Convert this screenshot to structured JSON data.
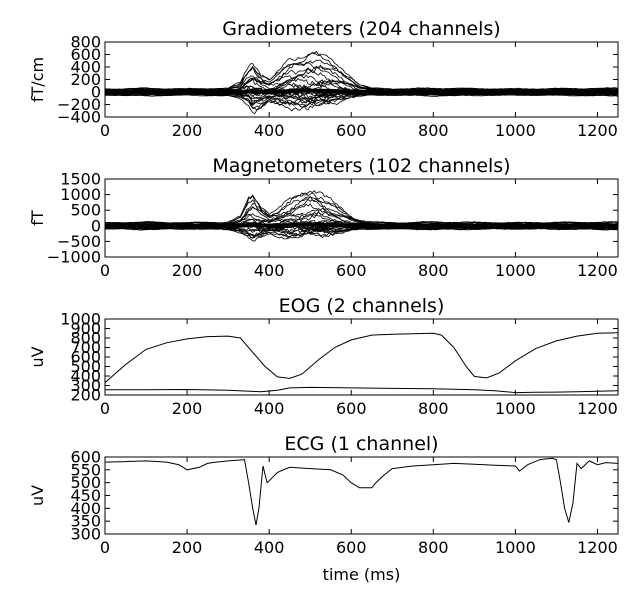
{
  "chart_data": [
    {
      "type": "line",
      "title": "Gradiometers (204 channels)",
      "ylabel": "fT/cm",
      "xlabel": "",
      "xlim": [
        0,
        1250
      ],
      "ylim": [
        -400,
        800
      ],
      "xticks": [
        0,
        200,
        400,
        600,
        800,
        1000,
        1200
      ],
      "yticks": [
        -400,
        -200,
        0,
        200,
        400,
        600,
        800
      ],
      "grid": false,
      "line_color": "#000000",
      "envelope": {
        "x": [
          0,
          100,
          200,
          300,
          330,
          350,
          360,
          380,
          400,
          420,
          450,
          480,
          500,
          520,
          550,
          580,
          600,
          620,
          650,
          700,
          800,
          1000,
          1250
        ],
        "upper": [
          50,
          60,
          50,
          60,
          150,
          420,
          500,
          300,
          200,
          300,
          500,
          600,
          660,
          620,
          500,
          350,
          250,
          120,
          60,
          50,
          60,
          50,
          60
        ],
        "lower": [
          -50,
          -60,
          -50,
          -60,
          -100,
          -200,
          -300,
          -250,
          -150,
          -200,
          -250,
          -230,
          -220,
          -200,
          -180,
          -120,
          -80,
          -60,
          -50,
          -50,
          -60,
          -50,
          -60
        ]
      }
    },
    {
      "type": "line",
      "title": "Magnetometers (102 channels)",
      "ylabel": "fT",
      "xlabel": "",
      "xlim": [
        0,
        1250
      ],
      "ylim": [
        -1000,
        1500
      ],
      "xticks": [
        0,
        200,
        400,
        600,
        800,
        1000,
        1200
      ],
      "yticks": [
        -1000,
        -500,
        0,
        500,
        1000,
        1500
      ],
      "grid": false,
      "line_color": "#000000",
      "envelope": {
        "x": [
          0,
          100,
          200,
          300,
          330,
          350,
          360,
          380,
          400,
          420,
          450,
          480,
          500,
          520,
          550,
          580,
          600,
          620,
          650,
          700,
          800,
          1000,
          1250
        ],
        "upper": [
          100,
          120,
          100,
          120,
          300,
          850,
          950,
          650,
          400,
          500,
          800,
          1050,
          1200,
          1100,
          800,
          500,
          300,
          180,
          120,
          100,
          120,
          100,
          120
        ],
        "lower": [
          -100,
          -120,
          -100,
          -120,
          -200,
          -350,
          -450,
          -400,
          -250,
          -300,
          -350,
          -330,
          -300,
          -280,
          -250,
          -200,
          -150,
          -120,
          -100,
          -100,
          -120,
          -100,
          -120
        ]
      }
    },
    {
      "type": "line",
      "title": "EOG (2 channels)",
      "ylabel": "uV",
      "xlabel": "",
      "xlim": [
        0,
        1250
      ],
      "ylim": [
        200,
        1000
      ],
      "xticks": [
        0,
        200,
        400,
        600,
        800,
        1000,
        1200
      ],
      "yticks": [
        200,
        300,
        400,
        500,
        600,
        700,
        800,
        900,
        1000
      ],
      "grid": false,
      "line_color": "#000000",
      "series": [
        {
          "x": [
            0,
            50,
            100,
            150,
            200,
            250,
            300,
            330,
            360,
            390,
            420,
            450,
            480,
            520,
            560,
            600,
            650,
            700,
            750,
            800,
            820,
            850,
            880,
            900,
            930,
            960,
            1000,
            1050,
            1100,
            1150,
            1200,
            1250
          ],
          "y": [
            330,
            520,
            680,
            750,
            790,
            815,
            820,
            800,
            650,
            500,
            390,
            375,
            420,
            570,
            700,
            780,
            830,
            840,
            845,
            850,
            830,
            700,
            500,
            395,
            380,
            430,
            560,
            690,
            770,
            820,
            850,
            855
          ]
        },
        {
          "x": [
            0,
            100,
            200,
            300,
            380,
            420,
            450,
            500,
            600,
            700,
            800,
            850,
            900,
            950,
            1000,
            1050,
            1100,
            1150,
            1200,
            1250
          ],
          "y": [
            255,
            255,
            258,
            250,
            235,
            250,
            275,
            280,
            275,
            270,
            265,
            260,
            255,
            245,
            225,
            228,
            230,
            235,
            240,
            245
          ]
        }
      ]
    },
    {
      "type": "line",
      "title": "ECG (1 channel)",
      "ylabel": "uV",
      "xlabel": "time (ms)",
      "xlim": [
        0,
        1250
      ],
      "ylim": [
        300,
        600
      ],
      "xticks": [
        0,
        200,
        400,
        600,
        800,
        1000,
        1200
      ],
      "yticks": [
        300,
        350,
        400,
        450,
        500,
        550,
        600
      ],
      "grid": false,
      "line_color": "#000000",
      "series": [
        {
          "x": [
            0,
            50,
            100,
            150,
            180,
            200,
            230,
            250,
            270,
            300,
            340,
            350,
            360,
            368,
            375,
            385,
            395,
            405,
            420,
            450,
            500,
            550,
            580,
            600,
            620,
            650,
            660,
            680,
            700,
            750,
            800,
            850,
            900,
            950,
            1000,
            1010,
            1030,
            1060,
            1090,
            1100,
            1110,
            1120,
            1130,
            1140,
            1150,
            1160,
            1180,
            1200,
            1220,
            1250
          ],
          "y": [
            580,
            582,
            585,
            580,
            570,
            550,
            560,
            575,
            580,
            585,
            590,
            500,
            400,
            335,
            400,
            565,
            500,
            515,
            540,
            560,
            555,
            550,
            530,
            500,
            480,
            480,
            500,
            530,
            555,
            565,
            570,
            575,
            572,
            568,
            565,
            545,
            570,
            590,
            595,
            590,
            500,
            400,
            345,
            420,
            575,
            555,
            585,
            570,
            578,
            575
          ]
        }
      ]
    }
  ]
}
